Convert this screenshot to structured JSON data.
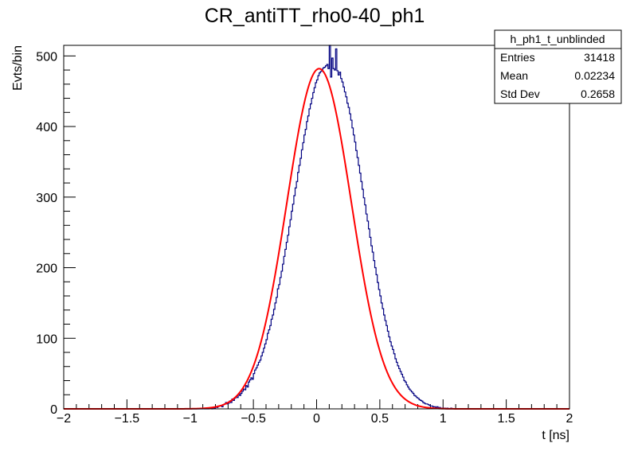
{
  "chart_data": {
    "type": "histogram",
    "title": "CR_antiTT_rho0-40_ph1",
    "xlabel": "t [ns]",
    "ylabel": "Evts/bin",
    "xlim": [
      -2,
      2
    ],
    "ylim": [
      0,
      515
    ],
    "x_ticks": [
      -2,
      -1.5,
      -1,
      -0.5,
      0,
      0.5,
      1,
      1.5,
      2
    ],
    "x_tick_labels": [
      "−2",
      "−1.5",
      "−1",
      "−0.5",
      "0",
      "0.5",
      "1",
      "1.5",
      "2"
    ],
    "y_ticks": [
      0,
      100,
      200,
      300,
      400,
      500
    ],
    "y_tick_labels": [
      "0",
      "100",
      "200",
      "300",
      "400",
      "500"
    ],
    "bin_width": 0.01,
    "histogram": {
      "name": "h_ph1_t_unblinded",
      "color": "#000080",
      "bin_start": -1.0,
      "values": [
        0,
        0,
        0,
        0,
        0,
        0,
        0,
        0,
        0,
        0,
        1,
        0,
        0,
        0,
        0,
        1,
        1,
        0,
        2,
        1,
        3,
        2,
        4,
        4,
        5,
        3,
        6,
        7,
        9,
        7,
        8,
        11,
        9,
        14,
        12,
        15,
        17,
        16,
        21,
        19,
        22,
        25,
        28,
        27,
        33,
        31,
        38,
        41,
        44,
        42,
        50,
        55,
        58,
        62,
        66,
        69,
        75,
        80,
        86,
        92,
        98,
        107,
        112,
        118,
        127,
        133,
        141,
        150,
        158,
        170,
        176,
        186,
        195,
        205,
        216,
        226,
        236,
        246,
        258,
        268,
        280,
        290,
        302,
        313,
        322,
        335,
        345,
        355,
        367,
        377,
        388,
        396,
        407,
        415,
        425,
        432,
        440,
        448,
        455,
        462,
        466,
        472,
        476,
        478,
        481,
        483,
        484,
        486,
        488,
        482,
        515,
        470,
        497,
        482,
        480,
        510,
        479,
        473,
        477,
        468,
        463,
        456,
        449,
        442,
        433,
        427,
        418,
        409,
        398,
        388,
        378,
        366,
        356,
        345,
        334,
        322,
        311,
        299,
        289,
        276,
        266,
        255,
        243,
        231,
        222,
        210,
        200,
        190,
        179,
        169,
        160,
        150,
        142,
        133,
        125,
        118,
        110,
        102,
        95,
        89,
        84,
        78,
        71,
        66,
        61,
        57,
        53,
        49,
        45,
        40,
        38,
        34,
        31,
        28,
        26,
        24,
        22,
        19,
        18,
        16,
        15,
        13,
        12,
        11,
        9,
        8,
        7,
        7,
        6,
        5,
        4,
        4,
        3,
        3,
        2,
        3,
        2,
        2,
        1,
        1,
        1,
        1,
        0,
        1,
        0,
        0,
        1,
        0,
        0,
        0,
        0
      ]
    },
    "fit": {
      "type": "gaussian",
      "color": "#ff0000",
      "amplitude": 482,
      "mean": 0.02,
      "sigma": 0.255
    },
    "stats": {
      "name": "h_ph1_t_unblinded",
      "rows": [
        {
          "label": "Entries",
          "value": "31418"
        },
        {
          "label": "Mean",
          "value": "0.02234"
        },
        {
          "label": "Std Dev",
          "value": "0.2658"
        }
      ]
    }
  }
}
